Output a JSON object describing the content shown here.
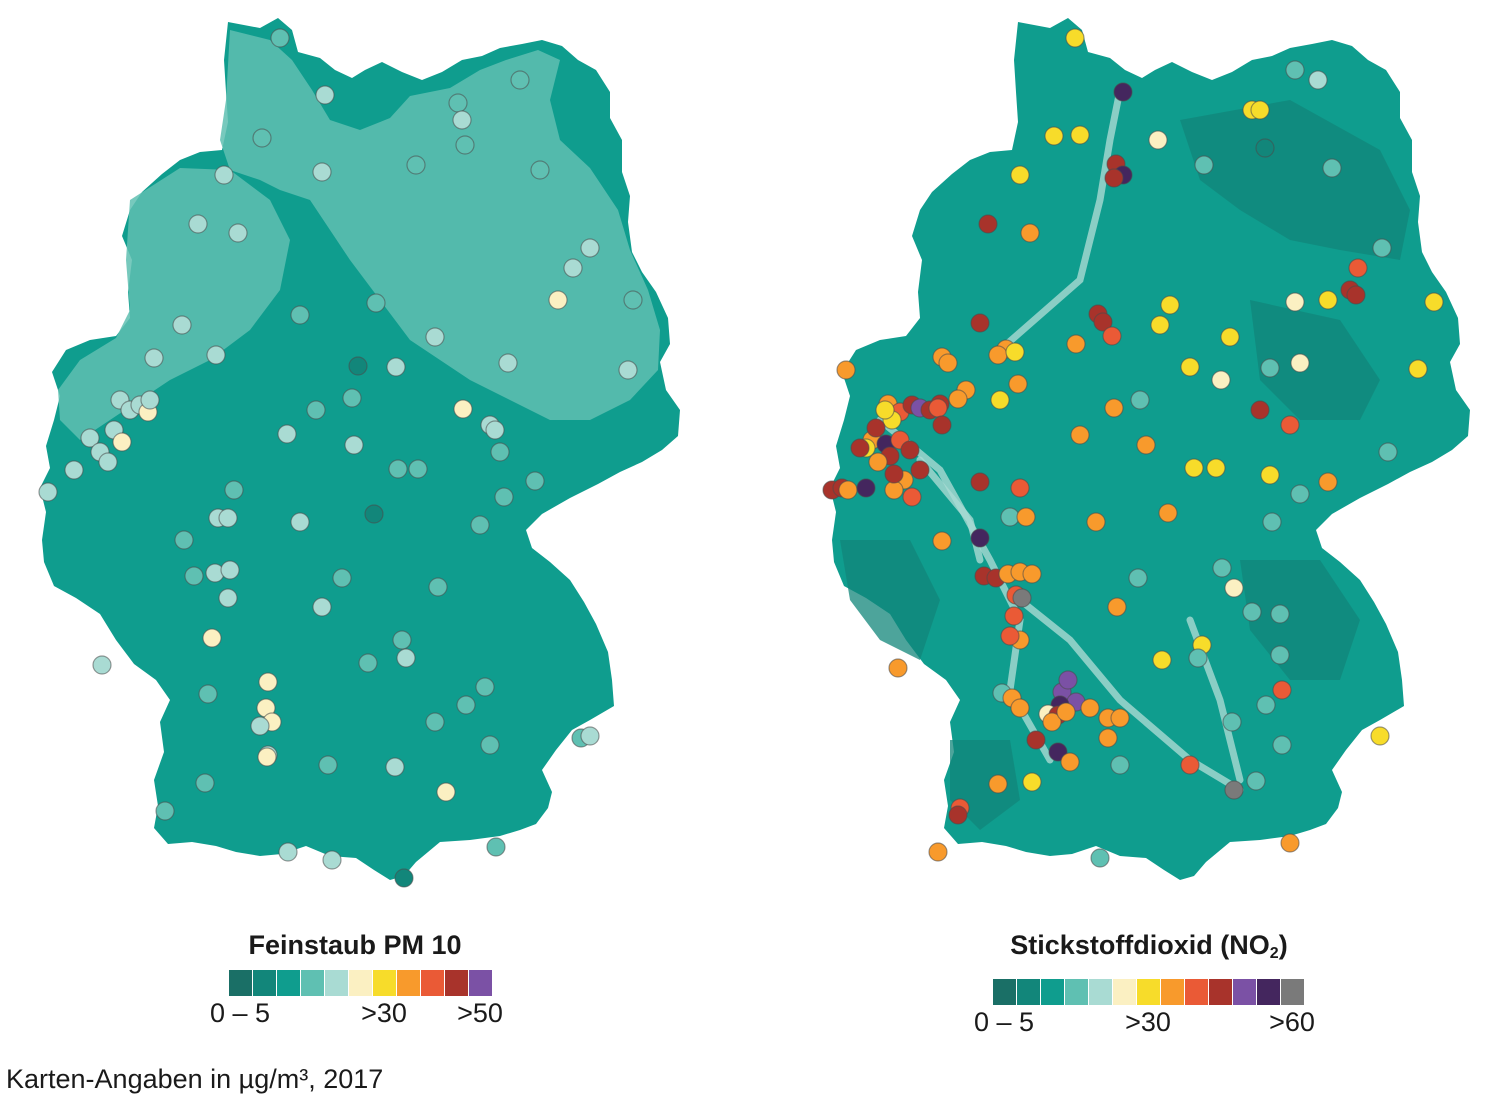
{
  "caption": "Karten-Angaben in µg/m³, 2017",
  "maps": [
    {
      "id": "pm10",
      "legend_title": "Feinstaub PM 10",
      "legend_title_sub": "",
      "legend_colors": [
        "#1a6f66",
        "#12867a",
        "#0f9d8e",
        "#5fc0b2",
        "#a9dbd3",
        "#fbf0c2",
        "#f7dc2a",
        "#f89a2c",
        "#ea5a36",
        "#a8332b",
        "#7b51a5"
      ],
      "legend_ticks": [
        {
          "text": "0 – 5",
          "at": 0
        },
        {
          "text": ">30",
          "at": 6
        },
        {
          "text": ">50",
          "at": 10
        }
      ],
      "background_colors": {
        "base": "#0f9d8e",
        "light": "#5fc0b2",
        "dark": "#12867a"
      },
      "stations_palette": {
        "dark": "#12867a",
        "mid": "#5fc0b2",
        "light": "#a9dbd3",
        "cream": "#fbf0c2",
        "yellow": "#f7dc2a"
      }
    },
    {
      "id": "no2",
      "legend_title": "Stickstoffdioxid (NO",
      "legend_title_sub": "2",
      "legend_title_end": ")",
      "legend_colors": [
        "#1a6f66",
        "#12867a",
        "#0f9d8e",
        "#5fc0b2",
        "#a9dbd3",
        "#fbf0c2",
        "#f7dc2a",
        "#f89a2c",
        "#ea5a36",
        "#a8332b",
        "#7b51a5",
        "#44265e",
        "#7a7a7a"
      ],
      "legend_ticks": [
        {
          "text": "0 – 5",
          "at": 0
        },
        {
          "text": ">30",
          "at": 6
        },
        {
          "text": ">60",
          "at": 12
        }
      ],
      "background_colors": {
        "base": "#0f9d8e",
        "light": "#a9dbd3",
        "dark": "#12867a"
      },
      "stations_palette": {
        "dark": "#12867a",
        "mid": "#5fc0b2",
        "light": "#a9dbd3",
        "cream": "#fbf0c2",
        "yellow": "#f7dc2a",
        "orange": "#f89a2c",
        "red": "#ea5a36",
        "darkred": "#a8332b",
        "purple": "#7b51a5",
        "darkpurple": "#44265e",
        "gray": "#7a7a7a"
      }
    }
  ]
}
